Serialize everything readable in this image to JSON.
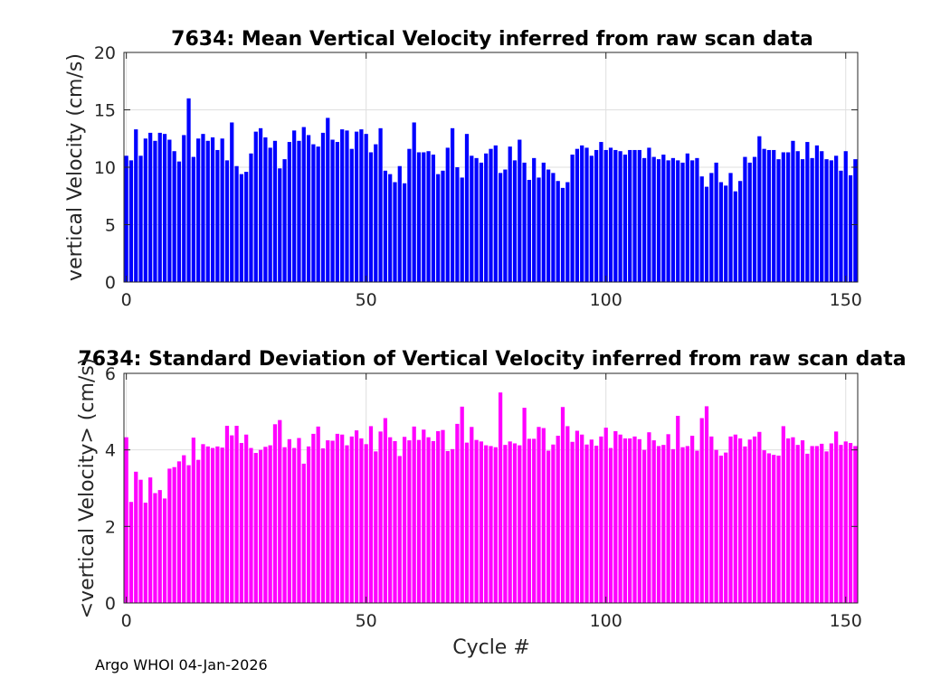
{
  "footer_text": "Argo WHOI 04-Jan-2026",
  "chart_data": [
    {
      "type": "bar",
      "title": "7634: Mean Vertical Velocity inferred from raw scan data",
      "xlabel": "",
      "ylabel": "vertical Velocity (cm/s)",
      "xlim": [
        -0.5,
        152.5
      ],
      "ylim": [
        0,
        20
      ],
      "xticks": [
        0,
        50,
        100,
        150
      ],
      "yticks": [
        0,
        5,
        10,
        15,
        20
      ],
      "grid": true,
      "color": "#0000ff",
      "x_start": 0,
      "values": [
        11.0,
        10.6,
        13.3,
        11.0,
        12.5,
        13.0,
        12.3,
        13.0,
        12.9,
        12.4,
        11.4,
        10.5,
        12.8,
        16.0,
        10.9,
        12.5,
        12.9,
        12.3,
        12.6,
        11.5,
        12.5,
        10.6,
        13.9,
        10.1,
        9.4,
        9.6,
        11.2,
        13.1,
        13.4,
        12.6,
        11.7,
        12.3,
        9.9,
        10.7,
        12.2,
        13.2,
        12.3,
        13.5,
        12.8,
        12.0,
        11.8,
        13.0,
        14.3,
        12.4,
        12.2,
        13.3,
        13.2,
        11.6,
        13.1,
        13.3,
        12.9,
        11.3,
        12.0,
        13.4,
        9.7,
        9.4,
        8.7,
        10.1,
        8.6,
        11.6,
        13.9,
        11.3,
        11.3,
        11.4,
        11.1,
        9.4,
        9.7,
        11.7,
        13.4,
        10.0,
        9.1,
        12.9,
        11.0,
        10.8,
        10.4,
        11.2,
        11.6,
        11.9,
        9.5,
        9.8,
        11.8,
        10.6,
        12.4,
        10.4,
        8.9,
        10.8,
        9.1,
        10.4,
        9.8,
        9.5,
        8.8,
        8.2,
        8.7,
        11.1,
        11.6,
        11.9,
        11.7,
        11.0,
        11.5,
        12.2,
        11.5,
        11.7,
        11.5,
        11.4,
        11.1,
        11.5,
        11.5,
        11.5,
        10.8,
        11.7,
        10.9,
        10.7,
        11.1,
        10.6,
        10.8,
        10.6,
        10.4,
        11.2,
        10.6,
        10.8,
        9.2,
        8.3,
        9.5,
        10.4,
        8.7,
        8.4,
        9.5,
        7.9,
        8.8,
        10.9,
        10.4,
        10.9,
        12.7,
        11.6,
        11.5,
        11.5,
        10.7,
        11.3,
        11.3,
        12.3,
        11.4,
        10.7,
        12.2,
        10.8,
        11.9,
        11.4,
        10.7,
        10.6,
        11.0,
        9.7,
        11.4,
        9.3,
        10.7
      ]
    },
    {
      "type": "bar",
      "title": "7634: Standard Deviation of Vertical Velocity inferred from raw scan data",
      "xlabel": "Cycle #",
      "ylabel": "<vertical Velocity> (cm/s)",
      "xlim": [
        -0.5,
        152.5
      ],
      "ylim": [
        0,
        6
      ],
      "xticks": [
        0,
        50,
        100,
        150
      ],
      "yticks": [
        0,
        2,
        4,
        6
      ],
      "grid": true,
      "color": "#ff00ff",
      "x_start": 0,
      "values": [
        4.33,
        2.64,
        3.43,
        3.22,
        2.62,
        3.28,
        2.87,
        2.95,
        2.73,
        3.51,
        3.55,
        3.7,
        3.86,
        3.6,
        4.32,
        3.74,
        4.15,
        4.09,
        4.05,
        4.09,
        4.06,
        4.63,
        4.38,
        4.63,
        4.18,
        4.4,
        4.05,
        3.92,
        4.0,
        4.08,
        4.12,
        4.67,
        4.78,
        4.07,
        4.28,
        4.05,
        4.31,
        3.64,
        4.09,
        4.42,
        4.61,
        4.04,
        4.25,
        4.24,
        4.42,
        4.4,
        4.12,
        4.35,
        4.51,
        4.3,
        4.15,
        4.62,
        3.96,
        4.48,
        4.83,
        4.33,
        4.23,
        3.84,
        4.34,
        4.25,
        4.61,
        4.26,
        4.53,
        4.33,
        4.23,
        4.49,
        4.52,
        3.97,
        4.02,
        4.68,
        5.13,
        4.19,
        4.6,
        4.26,
        4.22,
        4.12,
        4.1,
        4.07,
        5.5,
        4.13,
        4.22,
        4.17,
        4.12,
        5.1,
        4.29,
        4.29,
        4.6,
        4.57,
        3.98,
        4.14,
        4.37,
        5.12,
        4.62,
        4.21,
        4.5,
        4.4,
        4.14,
        4.27,
        4.11,
        4.35,
        4.58,
        4.05,
        4.49,
        4.4,
        4.3,
        4.3,
        4.35,
        4.28,
        4.0,
        4.46,
        4.25,
        4.1,
        4.13,
        4.41,
        4.02,
        4.89,
        4.07,
        4.1,
        4.37,
        3.98,
        4.83,
        5.14,
        4.35,
        4.0,
        3.85,
        3.93,
        4.35,
        4.4,
        4.3,
        4.09,
        4.27,
        4.35,
        4.47,
        3.99,
        3.91,
        3.87,
        3.85,
        4.62,
        4.3,
        4.33,
        4.13,
        4.25,
        3.9,
        4.1,
        4.1,
        4.16,
        3.96,
        4.17,
        4.48,
        4.13,
        4.22,
        4.18,
        4.1
      ]
    }
  ]
}
